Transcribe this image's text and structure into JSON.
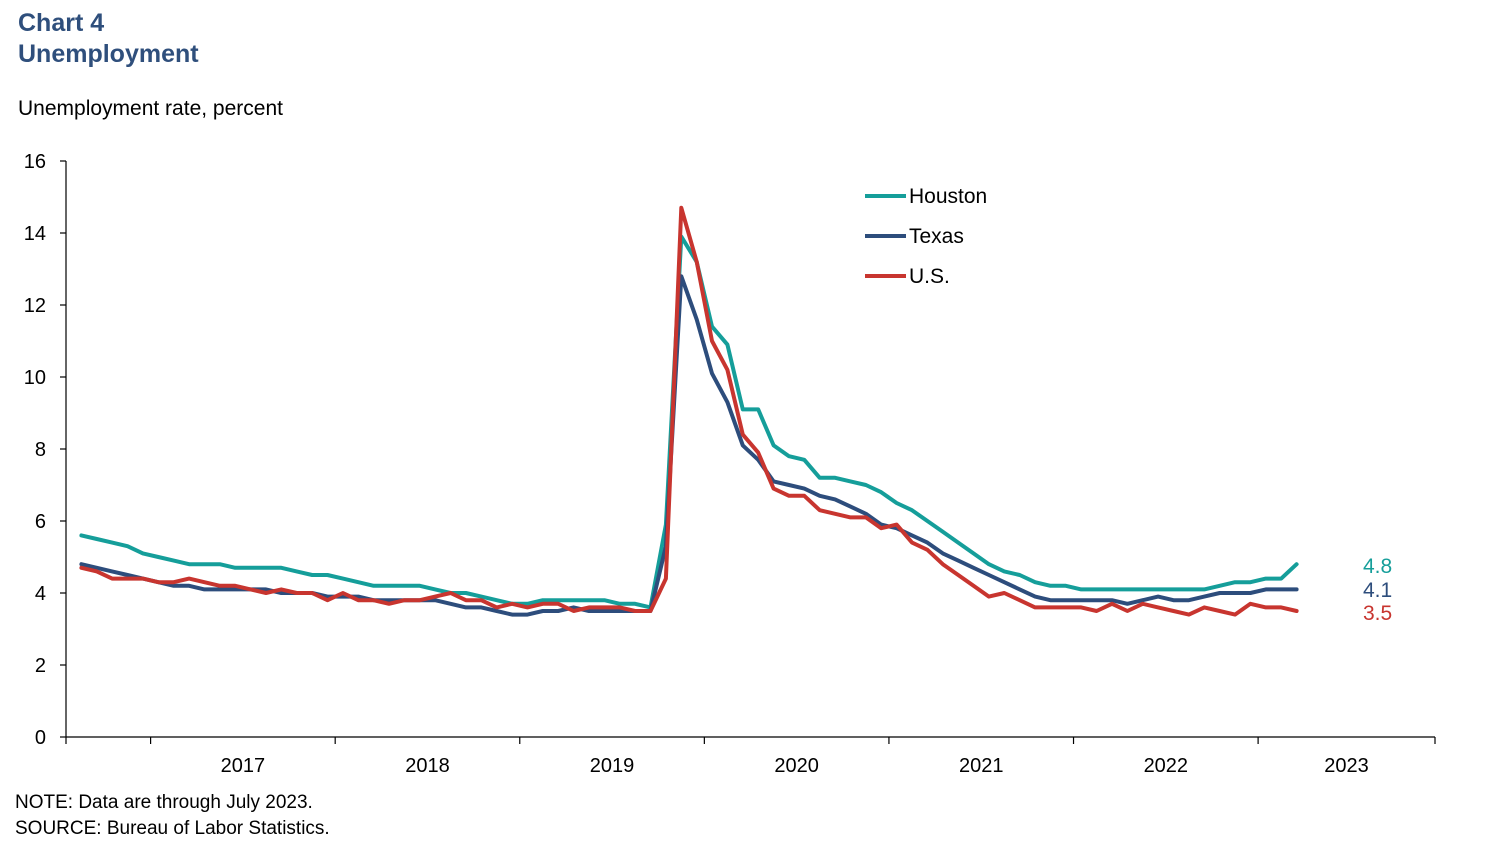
{
  "header": {
    "chart_number": "Chart 4",
    "chart_title": "Unemployment",
    "ylabel": "Unemployment rate, percent"
  },
  "footer": {
    "note": "NOTE: Data are through  July 2023.",
    "source": "SOURCE: Bureau  of Labor Statistics."
  },
  "chart_data": {
    "type": "line",
    "title": "Unemployment",
    "ylabel": "Unemployment rate, percent",
    "xlabel": "",
    "ylim": [
      0,
      16
    ],
    "yticks": [
      0,
      2,
      4,
      6,
      8,
      10,
      12,
      14,
      16
    ],
    "x_start": "2016-08",
    "x_end": "2023-07",
    "year_labels": [
      "2017",
      "2018",
      "2019",
      "2020",
      "2021",
      "2022",
      "2023"
    ],
    "legend_position": "top-center",
    "series": [
      {
        "name": "Houston",
        "color": "#159e9a",
        "end_label": "4.8",
        "values": [
          5.6,
          5.5,
          5.4,
          5.3,
          5.1,
          5.0,
          4.9,
          4.8,
          4.8,
          4.8,
          4.7,
          4.7,
          4.7,
          4.7,
          4.6,
          4.5,
          4.5,
          4.4,
          4.3,
          4.2,
          4.2,
          4.2,
          4.2,
          4.1,
          4.0,
          4.0,
          3.9,
          3.8,
          3.7,
          3.7,
          3.8,
          3.8,
          3.8,
          3.8,
          3.8,
          3.7,
          3.7,
          3.6,
          5.9,
          13.9,
          13.2,
          11.4,
          10.9,
          9.1,
          9.1,
          8.1,
          7.8,
          7.7,
          7.2,
          7.2,
          7.1,
          7.0,
          6.8,
          6.5,
          6.3,
          6.0,
          5.7,
          5.4,
          5.1,
          4.8,
          4.6,
          4.5,
          4.3,
          4.2,
          4.2,
          4.1,
          4.1,
          4.1,
          4.1,
          4.1,
          4.1,
          4.1,
          4.1,
          4.1,
          4.2,
          4.3,
          4.3,
          4.4,
          4.4,
          4.8
        ]
      },
      {
        "name": "Texas",
        "color": "#2d4d7c",
        "end_label": "4.1",
        "values": [
          4.8,
          4.7,
          4.6,
          4.5,
          4.4,
          4.3,
          4.2,
          4.2,
          4.1,
          4.1,
          4.1,
          4.1,
          4.1,
          4.0,
          4.0,
          4.0,
          3.9,
          3.9,
          3.9,
          3.8,
          3.8,
          3.8,
          3.8,
          3.8,
          3.7,
          3.6,
          3.6,
          3.5,
          3.4,
          3.4,
          3.5,
          3.5,
          3.6,
          3.5,
          3.5,
          3.5,
          3.5,
          3.5,
          5.3,
          12.8,
          11.6,
          10.1,
          9.3,
          8.1,
          7.7,
          7.1,
          7.0,
          6.9,
          6.7,
          6.6,
          6.4,
          6.2,
          5.9,
          5.8,
          5.6,
          5.4,
          5.1,
          4.9,
          4.7,
          4.5,
          4.3,
          4.1,
          3.9,
          3.8,
          3.8,
          3.8,
          3.8,
          3.8,
          3.7,
          3.8,
          3.9,
          3.8,
          3.8,
          3.9,
          4.0,
          4.0,
          4.0,
          4.1,
          4.1,
          4.1
        ]
      },
      {
        "name": "U.S.",
        "color": "#c8352f",
        "end_label": "3.5",
        "values": [
          4.7,
          4.6,
          4.4,
          4.4,
          4.4,
          4.3,
          4.3,
          4.4,
          4.3,
          4.2,
          4.2,
          4.1,
          4.0,
          4.1,
          4.0,
          4.0,
          3.8,
          4.0,
          3.8,
          3.8,
          3.7,
          3.8,
          3.8,
          3.9,
          4.0,
          3.8,
          3.8,
          3.6,
          3.7,
          3.6,
          3.7,
          3.7,
          3.5,
          3.6,
          3.6,
          3.6,
          3.5,
          3.5,
          4.4,
          14.7,
          13.2,
          11.0,
          10.2,
          8.4,
          7.9,
          6.9,
          6.7,
          6.7,
          6.3,
          6.2,
          6.1,
          6.1,
          5.8,
          5.9,
          5.4,
          5.2,
          4.8,
          4.5,
          4.2,
          3.9,
          4.0,
          3.8,
          3.6,
          3.6,
          3.6,
          3.6,
          3.5,
          3.7,
          3.5,
          3.7,
          3.6,
          3.5,
          3.4,
          3.6,
          3.5,
          3.4,
          3.7,
          3.6,
          3.6,
          3.5
        ]
      }
    ]
  }
}
